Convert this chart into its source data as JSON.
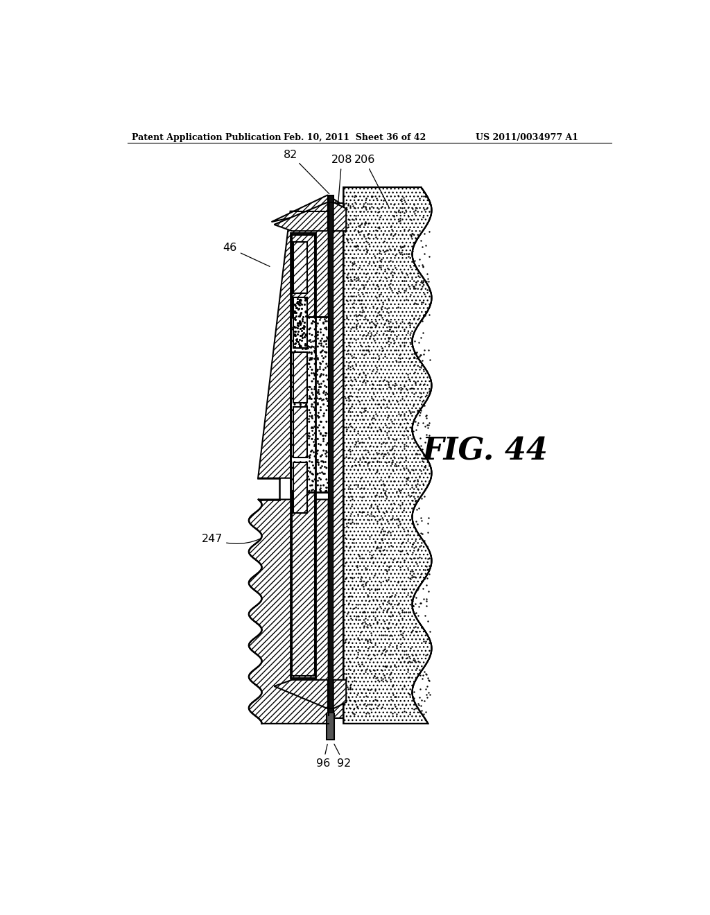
{
  "title_left": "Patent Application Publication",
  "title_mid": "Feb. 10, 2011  Sheet 36 of 42",
  "title_right": "US 2011/0034977 A1",
  "fig_label": "FIG. 44",
  "bg_color": "#ffffff"
}
